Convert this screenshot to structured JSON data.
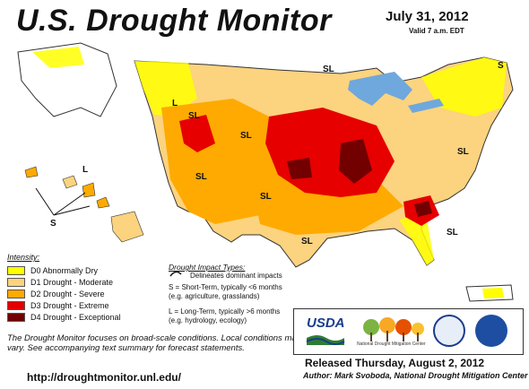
{
  "header": {
    "title": "U.S. Drought Monitor",
    "date": "July 31, 2012",
    "valid": "Valid 7 a.m. EDT"
  },
  "legend": {
    "title": "Intensity:",
    "items": [
      {
        "label": "D0 Abnormally Dry",
        "color": "#ffff00"
      },
      {
        "label": "D1 Drought - Moderate",
        "color": "#fcd37f"
      },
      {
        "label": "D2 Drought - Severe",
        "color": "#ffaa00"
      },
      {
        "label": "D3 Drought - Extreme",
        "color": "#e60000"
      },
      {
        "label": "D4 Drought - Exceptional",
        "color": "#730000"
      }
    ]
  },
  "impacts": {
    "title": "Drought Impact Types:",
    "line": "Delineates dominant impacts",
    "short_1": "S = Short-Term, typically <6 months",
    "short_2": "(e.g. agriculture, grasslands)",
    "long_1": "L = Long-Term, typically >6 months",
    "long_2": "(e.g. hydrology, ecology)"
  },
  "map_labels": {
    "sl_label": "SL",
    "l_label": "L",
    "s_label": "S"
  },
  "footer": {
    "focus": "The Drought Monitor focuses on broad-scale conditions. Local conditions may vary. See accompanying text summary for forecast statements.",
    "url": "http://droughtmonitor.unl.edu/",
    "released": "Released Thursday, August 2, 2012",
    "author": "Author: Mark Svoboda, National Drought Mitigation Center"
  },
  "logos": {
    "usda": "USDA",
    "ndmc": "National Drought Mitigation Center",
    "seal1_icon": "dept-of-commerce-seal-icon",
    "seal2_icon": "noaa-logo-icon"
  },
  "colors": {
    "water": "#6fa8dc",
    "land": "#ffffff",
    "border": "#333333"
  }
}
